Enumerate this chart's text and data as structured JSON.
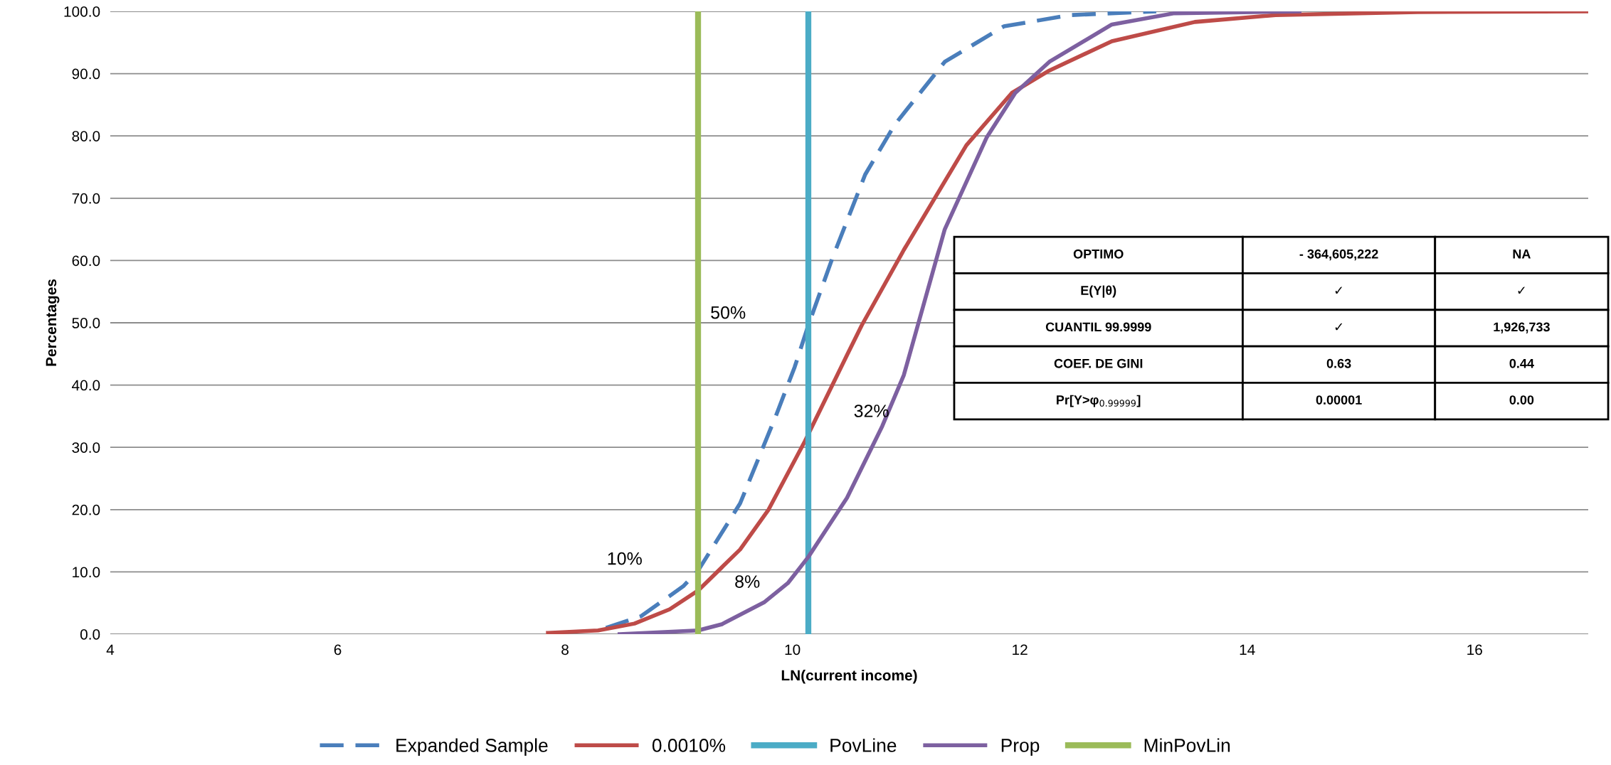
{
  "chart_data": {
    "type": "line",
    "xlabel": "LN(current income)",
    "ylabel": "Percentages",
    "xlim": [
      4,
      17
    ],
    "xticks": [
      4,
      6,
      8,
      10,
      12,
      14,
      16
    ],
    "ylim": [
      0,
      100
    ],
    "yticks": [
      {
        "value": 0,
        "label": "0.0"
      },
      {
        "value": 10,
        "label": "10.0"
      },
      {
        "value": 20,
        "label": "20.0"
      },
      {
        "value": 30,
        "label": "30.0"
      },
      {
        "value": 40,
        "label": "40.0"
      },
      {
        "value": 50,
        "label": "50.0"
      },
      {
        "value": 60,
        "label": "60.0"
      },
      {
        "value": 70,
        "label": "70.0"
      },
      {
        "value": 80,
        "label": "80.0"
      },
      {
        "value": 90,
        "label": "90.0"
      },
      {
        "value": 100,
        "label": "100.0"
      }
    ],
    "grid": "y",
    "legend": "bottom",
    "series": [
      {
        "name": "Expanded Sample",
        "color": "#4a7ebb",
        "line_style": "dashed",
        "x": [
          8.36,
          8.67,
          9.04,
          9.17,
          9.54,
          9.86,
          10.02,
          10.14,
          10.35,
          10.64,
          10.9,
          11.34,
          11.86,
          12.44,
          13.2
        ],
        "values": [
          1.0,
          2.9,
          7.7,
          10.2,
          21,
          35.3,
          42.9,
          49.6,
          60.3,
          73.8,
          81.8,
          91.9,
          97.6,
          99.4,
          100
        ]
      },
      {
        "name": "0.0010%",
        "color": "#be4b48",
        "x": [
          7.85,
          8.29,
          8.61,
          8.92,
          9.17,
          9.54,
          9.79,
          10.11,
          10.48,
          10.61,
          10.98,
          11.53,
          11.93,
          12.26,
          12.81,
          13.54,
          14.25,
          15.5,
          17
        ],
        "values": [
          0.2,
          0.6,
          1.7,
          4.0,
          7.0,
          13.6,
          20,
          31,
          44.8,
          49.6,
          61.7,
          78.5,
          86.9,
          90.5,
          95.2,
          98.3,
          99.4,
          99.9,
          100
        ]
      },
      {
        "name": "PovLine",
        "color": "#4bacc6",
        "x": [
          10.14,
          10.14
        ],
        "values": [
          0,
          100
        ]
      },
      {
        "name": "Prop",
        "color": "#7d60a0",
        "x": [
          8.48,
          9.17,
          9.38,
          9.75,
          9.96,
          10.14,
          10.48,
          10.79,
          10.98,
          11.34,
          11.71,
          11.96,
          12.26,
          12.81,
          13.36,
          14.46
        ],
        "values": [
          0,
          0.6,
          1.6,
          5.1,
          8.2,
          12.4,
          21.9,
          33.4,
          41.6,
          65,
          79.8,
          86.9,
          91.9,
          97.9,
          99.7,
          100
        ]
      },
      {
        "name": "MinPovLin",
        "color": "#9bbb59",
        "x": [
          9.17,
          9.17
        ],
        "values": [
          0,
          100
        ]
      }
    ],
    "annotations": [
      "50%",
      "32%",
      "10%",
      "8%",
      "OPTIMO",
      "- 364,605,222",
      "NA",
      "E(Y|θ)",
      "✓",
      "✓",
      "CUANTIL 99.9999",
      "✓",
      "1,926,733",
      "COEF. DE GINI",
      "0.63",
      "0.44",
      "Pr[Y>φ$_{0.99999}$]",
      "0.00001",
      "0.00"
    ]
  }
}
